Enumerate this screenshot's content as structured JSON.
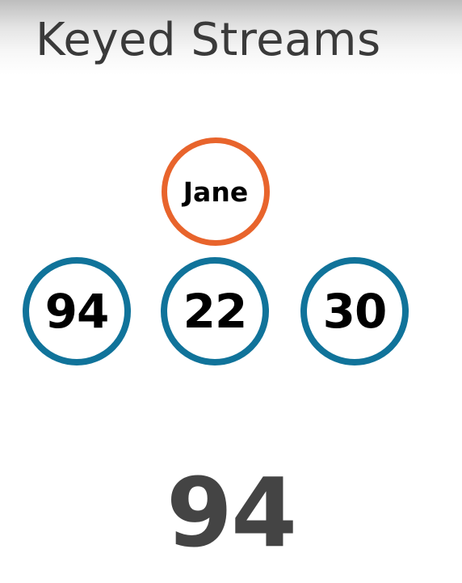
{
  "title": "Keyed Streams",
  "key": {
    "label": "Jane",
    "border_color": "#e8642c"
  },
  "values": {
    "border_color": "#10739a",
    "items": [
      "94",
      "22",
      "30"
    ]
  },
  "result": "94"
}
